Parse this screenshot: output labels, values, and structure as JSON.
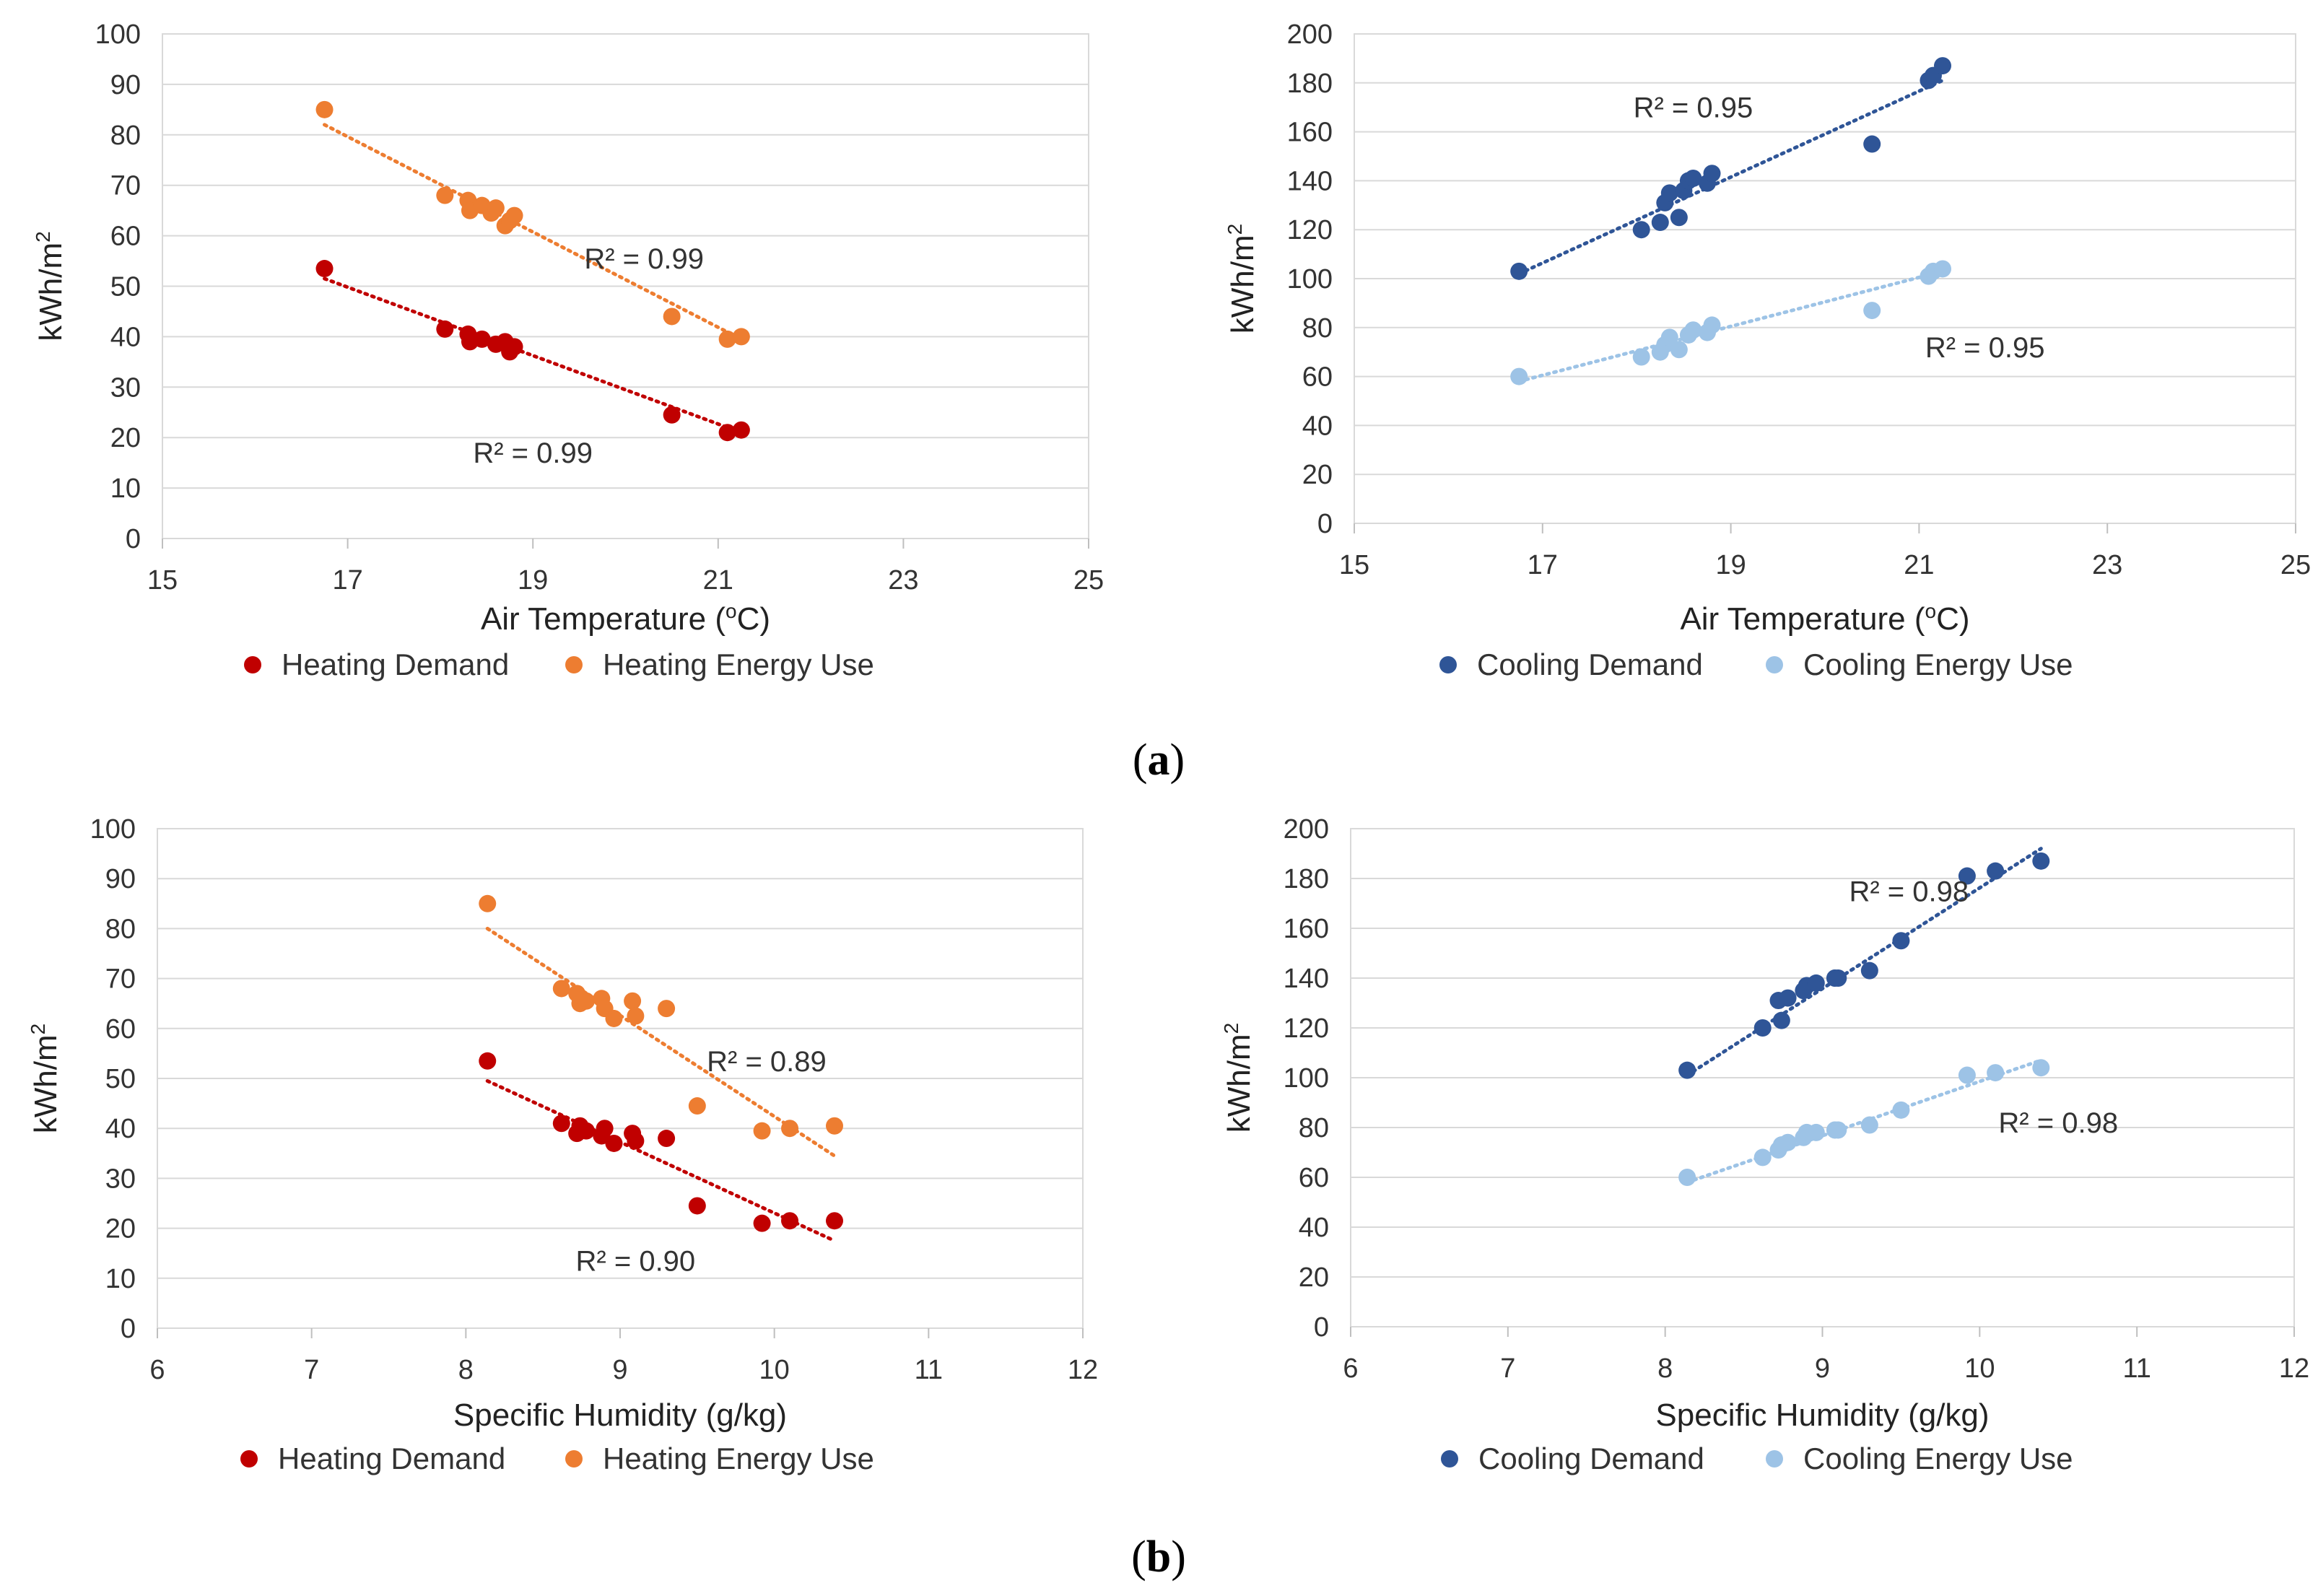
{
  "panel_labels": {
    "a": "a",
    "b": "b"
  },
  "chart_data": [
    {
      "type": "scatter",
      "title": "",
      "xlabel": "Air Temperature (",
      "xlabel_sup": "o",
      "xlabel_unit": "C)",
      "ylabel": "kWh/m",
      "ylabel_sup": "2",
      "xlim": [
        15,
        25
      ],
      "xticks": [
        "15",
        "17",
        "19",
        "21",
        "23",
        "25"
      ],
      "ylim": [
        0,
        100
      ],
      "yticks": [
        "0",
        "10",
        "20",
        "30",
        "40",
        "50",
        "60",
        "70",
        "80",
        "90",
        "100"
      ],
      "series": [
        {
          "name": "Heating Demand",
          "color": "#c00000",
          "x": [
            16.75,
            18.05,
            18.3,
            18.32,
            18.45,
            18.6,
            18.7,
            18.75,
            18.8,
            20.5,
            21.1,
            21.25
          ],
          "y": [
            53.5,
            41.5,
            40.5,
            39,
            39.5,
            38.5,
            39,
            37,
            38,
            24.5,
            21,
            21.5
          ],
          "trend": [
            [
              16.75,
              51.5
            ],
            [
              21.25,
              21.0
            ]
          ],
          "r2": "R² = 0.99",
          "r2_pos": [
            19.0,
            17.0
          ]
        },
        {
          "name": "Heating Energy Use",
          "color": "#ed7d31",
          "x": [
            16.75,
            18.05,
            18.3,
            18.32,
            18.45,
            18.55,
            18.6,
            18.7,
            18.75,
            18.8,
            20.5,
            21.1,
            21.25
          ],
          "y": [
            85,
            68,
            67,
            65,
            66,
            64.5,
            65.5,
            62,
            63,
            64,
            44,
            39.5,
            40
          ],
          "trend": [
            [
              16.75,
              82
            ],
            [
              21.25,
              39.5
            ]
          ],
          "r2": "R² = 0.99",
          "r2_pos": [
            20.2,
            55.5
          ]
        },
        {
          "name": "Cooling Demand",
          "color": "#2f5597",
          "x": [
            16.75,
            18.05,
            18.25,
            18.3,
            18.35,
            18.45,
            18.5,
            18.55,
            18.6,
            18.75,
            18.8,
            20.5,
            21.1,
            21.15,
            21.25
          ],
          "y": [
            103,
            120,
            123,
            131,
            135,
            125,
            136,
            140,
            141,
            139,
            143,
            155,
            181,
            183,
            187
          ],
          "trend": [
            [
              16.75,
              102
            ],
            [
              21.25,
              181
            ]
          ],
          "r2": "R² = 0.95",
          "r2_pos": [
            18.6,
            170
          ]
        },
        {
          "name": "Cooling Energy Use",
          "color": "#9dc3e6",
          "x": [
            16.75,
            18.05,
            18.25,
            18.3,
            18.35,
            18.45,
            18.55,
            18.6,
            18.75,
            18.8,
            20.5,
            21.1,
            21.15,
            21.25
          ],
          "y": [
            60,
            68,
            70,
            73,
            76,
            71,
            77,
            79,
            78,
            81,
            87,
            101,
            103,
            104
          ],
          "trend": [
            [
              16.75,
              58
            ],
            [
              21.25,
              103
            ]
          ],
          "r2": "R² = 0.95",
          "r2_pos": [
            21.7,
            72
          ]
        }
      ]
    },
    {
      "type": "scatter",
      "title": "",
      "xlabel": "Specific Humidity (g/kg)",
      "ylabel": "kWh/m",
      "ylabel_sup": "2",
      "xlim": [
        6,
        12
      ],
      "xticks": [
        "6",
        "7",
        "8",
        "9",
        "10",
        "11",
        "12"
      ],
      "ylim": [
        0,
        100
      ],
      "yticks": [
        "0",
        "10",
        "20",
        "30",
        "40",
        "50",
        "60",
        "70",
        "80",
        "90",
        "100"
      ],
      "series": [
        {
          "name": "Heating Demand",
          "color": "#c00000",
          "x": [
            8.14,
            8.62,
            8.72,
            8.74,
            8.78,
            8.88,
            8.9,
            8.96,
            9.08,
            9.1,
            9.3,
            9.5,
            9.92,
            10.1,
            10.39
          ],
          "y": [
            53.5,
            41,
            39,
            40.5,
            39.5,
            38.5,
            40,
            37,
            39,
            37.5,
            38,
            24.5,
            21,
            21.5,
            21.5
          ],
          "trend": [
            [
              8.14,
              49.5
            ],
            [
              10.39,
              17.5
            ]
          ],
          "r2": "R² = 0.90",
          "r2_pos": [
            9.1,
            13.5
          ]
        },
        {
          "name": "Heating Energy Use",
          "color": "#ed7d31",
          "x": [
            8.14,
            8.62,
            8.72,
            8.74,
            8.78,
            8.88,
            8.9,
            8.96,
            9.08,
            9.1,
            9.3,
            9.5,
            9.92,
            10.1,
            10.39
          ],
          "y": [
            85,
            68,
            67,
            65,
            65.5,
            66,
            64,
            62,
            65.5,
            62.5,
            64,
            44.5,
            39.5,
            40,
            40.5
          ],
          "trend": [
            [
              8.14,
              80
            ],
            [
              10.39,
              34.5
            ]
          ],
          "r2": "R² = 0.89",
          "r2_pos": [
            9.95,
            53.5
          ]
        },
        {
          "name": "Cooling Demand",
          "color": "#2f5597",
          "x": [
            8.14,
            8.62,
            8.72,
            8.74,
            8.78,
            8.88,
            8.9,
            8.96,
            9.08,
            9.1,
            9.3,
            9.5,
            9.92,
            10.1,
            10.39
          ],
          "y": [
            103,
            120,
            131,
            123,
            132,
            135,
            137,
            138,
            140,
            140,
            143,
            155,
            181,
            183,
            187
          ],
          "trend": [
            [
              8.14,
              101
            ],
            [
              10.39,
              192
            ]
          ],
          "r2": "R² = 0.98",
          "r2_pos": [
            9.55,
            175
          ]
        },
        {
          "name": "Cooling Energy Use",
          "color": "#9dc3e6",
          "x": [
            8.14,
            8.62,
            8.72,
            8.74,
            8.78,
            8.88,
            8.9,
            8.96,
            9.08,
            9.1,
            9.3,
            9.5,
            9.92,
            10.1,
            10.39
          ],
          "y": [
            60,
            68,
            71,
            73,
            74,
            76,
            78,
            78,
            79,
            79,
            81,
            87,
            101,
            102,
            104
          ],
          "trend": [
            [
              8.14,
              58
            ],
            [
              10.39,
              107
            ]
          ],
          "r2": "R² = 0.98",
          "r2_pos": [
            10.5,
            82
          ]
        }
      ]
    }
  ]
}
